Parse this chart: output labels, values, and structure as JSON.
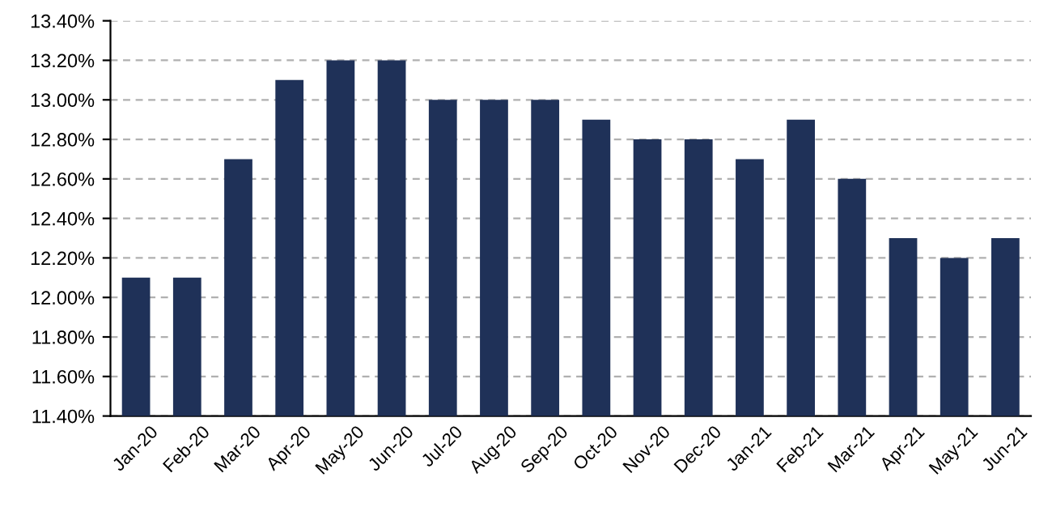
{
  "chart_data": {
    "type": "bar",
    "categories": [
      "Jan-20",
      "Feb-20",
      "Mar-20",
      "Apr-20",
      "May-20",
      "Jun-20",
      "Jul-20",
      "Aug-20",
      "Sep-20",
      "Oct-20",
      "Nov-20",
      "Dec-20",
      "Jan-21",
      "Feb-21",
      "Mar-21",
      "Apr-21",
      "May-21",
      "Jun-21"
    ],
    "values": [
      12.1,
      12.1,
      12.7,
      13.1,
      13.2,
      13.2,
      13.0,
      13.0,
      13.0,
      12.9,
      12.8,
      12.8,
      12.7,
      12.9,
      12.6,
      12.3,
      12.2,
      12.3
    ],
    "color": "#1f3158",
    "ylim": [
      11.4,
      13.4
    ],
    "yticks": [
      {
        "value": 11.4,
        "label": "11.40%"
      },
      {
        "value": 11.6,
        "label": "11.60%"
      },
      {
        "value": 11.8,
        "label": "11.80%"
      },
      {
        "value": 12.0,
        "label": "12.00%"
      },
      {
        "value": 12.2,
        "label": "12.20%"
      },
      {
        "value": 12.4,
        "label": "12.40%"
      },
      {
        "value": 12.6,
        "label": "12.60%"
      },
      {
        "value": 12.8,
        "label": "12.80%"
      },
      {
        "value": 13.0,
        "label": "13.00%"
      },
      {
        "value": 13.2,
        "label": "13.20%"
      },
      {
        "value": 13.4,
        "label": "13.40%"
      }
    ],
    "grid": "y"
  }
}
